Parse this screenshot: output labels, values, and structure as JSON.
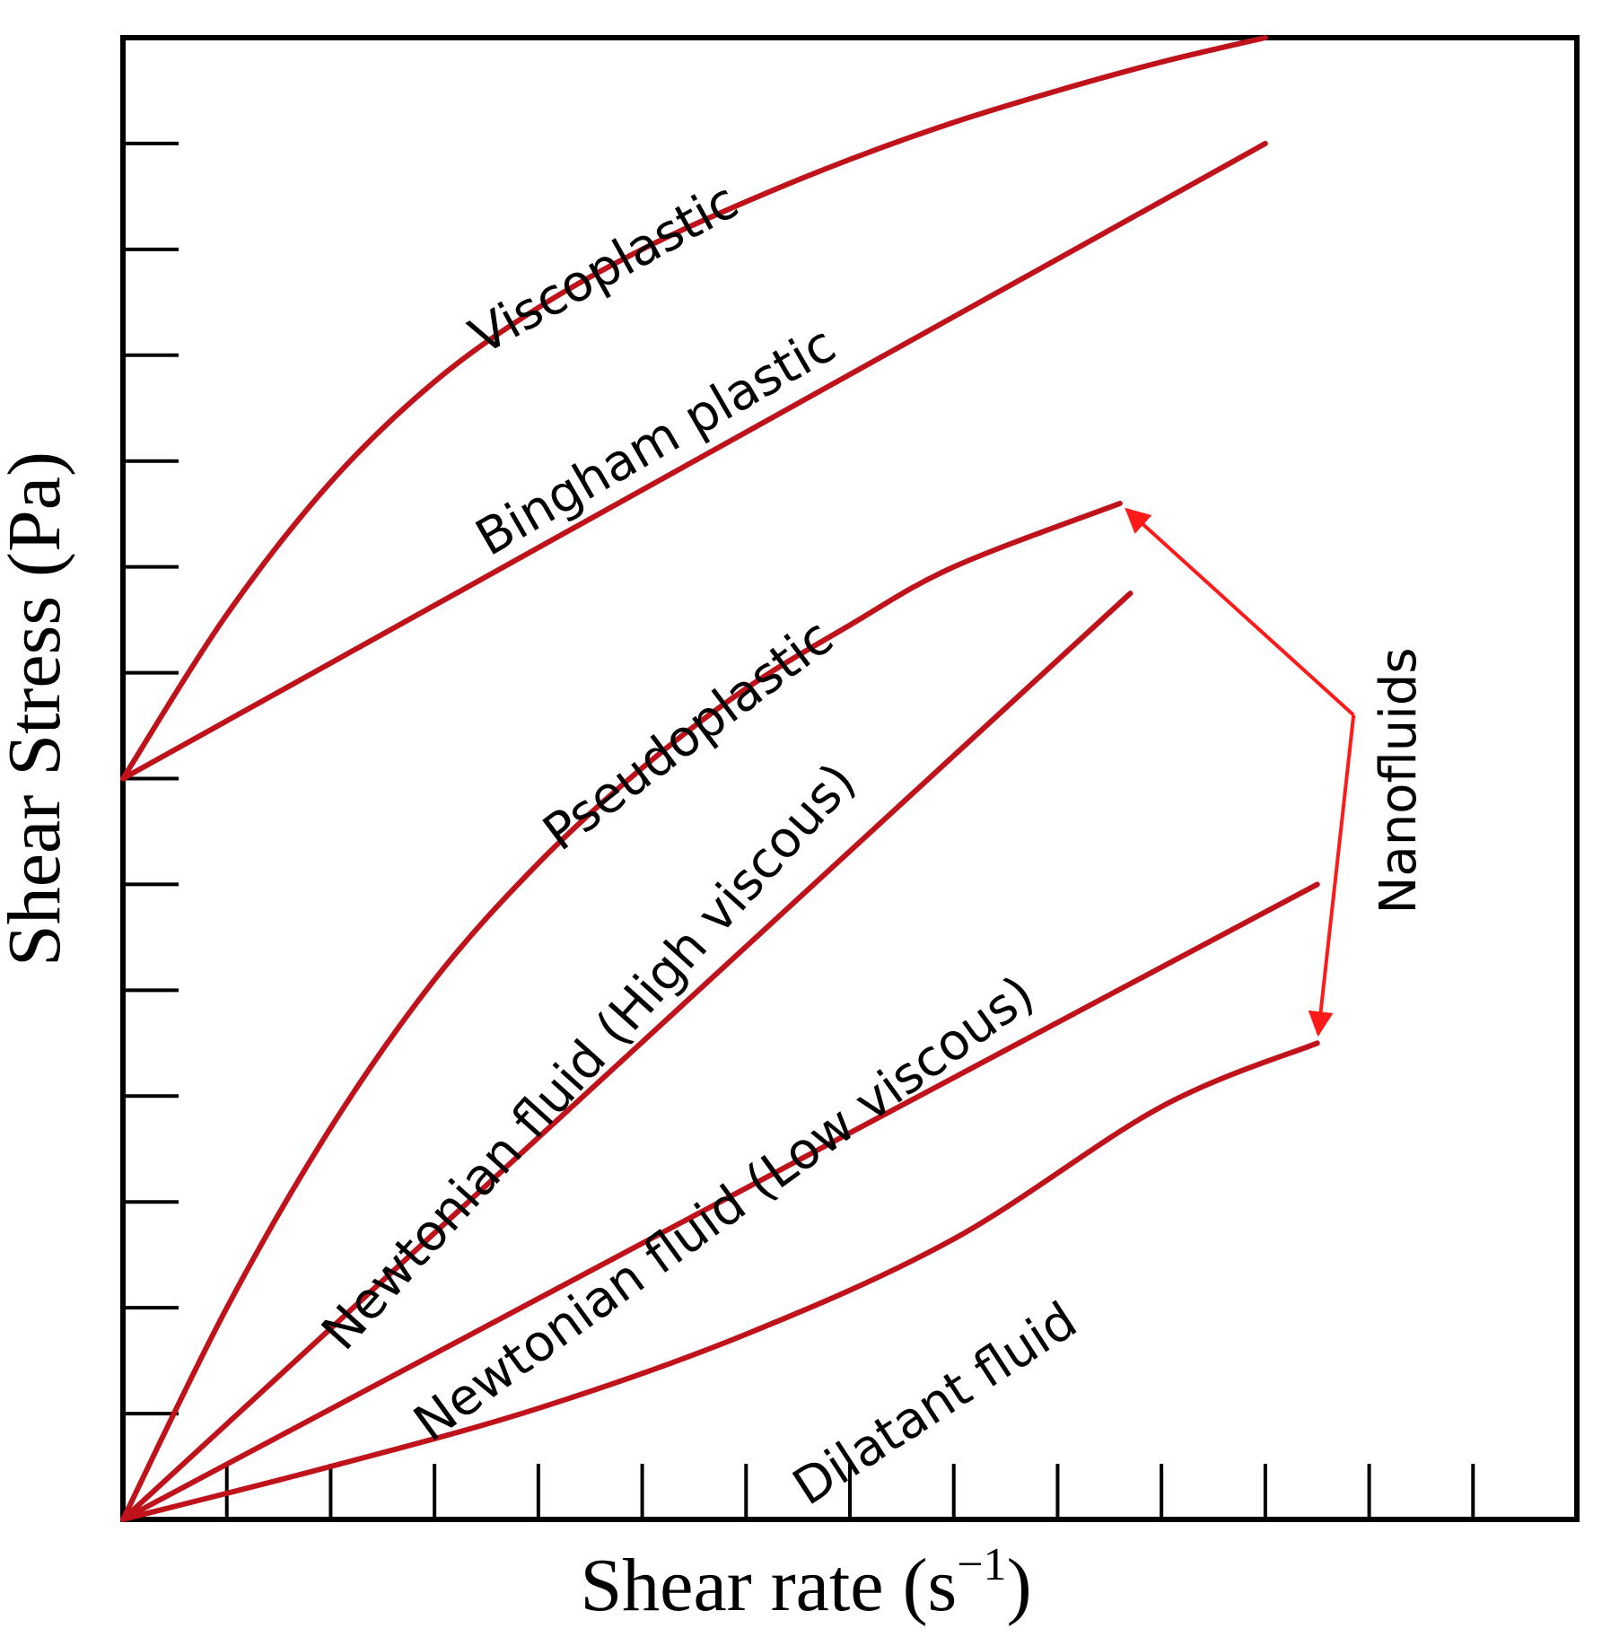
{
  "chart_data": {
    "type": "line",
    "title": "",
    "xlabel": "Shear rate (s",
    "xlabel_superscript": "−1",
    "xlabel_close": ")",
    "ylabel": "Shear Stress (Pa)",
    "xlim": [
      0,
      14
    ],
    "ylim": [
      0,
      14
    ],
    "x_tick_count": 14,
    "y_tick_count": 14,
    "tick_labels": false,
    "grid": false,
    "line_color": "#c0121a",
    "annotation_color": "#ff1a1a",
    "series": [
      {
        "name": "Viscoplastic",
        "x": [
          0,
          1,
          2,
          3,
          4,
          5,
          6,
          7,
          8,
          9,
          10,
          11
        ],
        "y": [
          7,
          8.55,
          9.8,
          10.75,
          11.45,
          12.0,
          12.45,
          12.85,
          13.2,
          13.5,
          13.77,
          14.0
        ]
      },
      {
        "name": "Bingham plastic",
        "x": [
          0,
          11
        ],
        "y": [
          7,
          13.0
        ]
      },
      {
        "name": "Pseudoplastic",
        "x": [
          0,
          1,
          2,
          3,
          4,
          5,
          6,
          7,
          8,
          9.6
        ],
        "y": [
          0,
          2.0,
          3.7,
          5.1,
          6.2,
          7.1,
          7.85,
          8.45,
          9.0,
          9.6
        ]
      },
      {
        "name": "Newtonian fluid (High viscous)",
        "x": [
          0,
          9.7
        ],
        "y": [
          0,
          8.75
        ]
      },
      {
        "name": "Newtonian fluid (Low viscous)",
        "x": [
          0,
          11.5
        ],
        "y": [
          0,
          6.0
        ]
      },
      {
        "name": "Dilatant fluid",
        "x": [
          0,
          2,
          4,
          6,
          8,
          10,
          11.5
        ],
        "y": [
          0,
          0.5,
          1.05,
          1.75,
          2.65,
          3.9,
          4.5
        ]
      }
    ],
    "annotations": [
      {
        "text": "Nanofluids",
        "from": [
          11.85,
          7.6
        ],
        "to_series": [
          "Pseudoplastic",
          "Dilatant fluid"
        ]
      }
    ]
  }
}
